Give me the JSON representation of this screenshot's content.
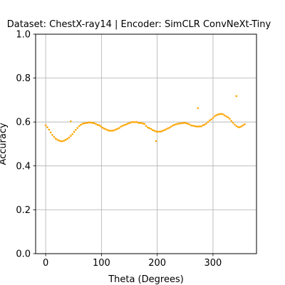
{
  "chart_data": {
    "type": "scatter",
    "title": "Dataset: ChestX-ray14 | Encoder: SimCLR ConvNeXt-Tiny",
    "xlabel": "Theta (Degrees)",
    "ylabel": "Accuracy",
    "xlim": [
      -18,
      378
    ],
    "ylim": [
      0.0,
      1.0
    ],
    "xticks": [
      0,
      100,
      200,
      300
    ],
    "yticks": [
      0.0,
      0.2,
      0.4,
      0.6,
      0.8,
      1.0
    ],
    "xtick_labels": [
      "0",
      "100",
      "200",
      "300"
    ],
    "ytick_labels": [
      "0.0",
      "0.2",
      "0.4",
      "0.6",
      "0.8",
      "1.0"
    ],
    "grid": true,
    "marker_color": "#ffa500",
    "series": [
      {
        "x": [
          0,
          3,
          6,
          9,
          12,
          15,
          18,
          21,
          24,
          27,
          30,
          33,
          36,
          39,
          42,
          45,
          48,
          51,
          54,
          57,
          60,
          63,
          66,
          69,
          72,
          75,
          78,
          81,
          84,
          87,
          90,
          93,
          96,
          99,
          102,
          105,
          108,
          111,
          114,
          117,
          120,
          123,
          126,
          129,
          132,
          135,
          138,
          141,
          144,
          147,
          150,
          153,
          156,
          159,
          162,
          165,
          168,
          171,
          174,
          177,
          180,
          183,
          186,
          189,
          192,
          195,
          198,
          201,
          204,
          207,
          210,
          213,
          216,
          219,
          222,
          225,
          228,
          231,
          234,
          237,
          240,
          243,
          246,
          249,
          252,
          255,
          258,
          261,
          264,
          267,
          270,
          273,
          276,
          279,
          282,
          285,
          288,
          291,
          294,
          297,
          300,
          303,
          306,
          309,
          312,
          315,
          318,
          321,
          324,
          327,
          330,
          333,
          336,
          339,
          342,
          345,
          348,
          351,
          354,
          357,
          45,
          198,
          273,
          342
        ],
        "y": [
          0.585,
          0.576,
          0.565,
          0.552,
          0.541,
          0.532,
          0.524,
          0.519,
          0.515,
          0.513,
          0.512,
          0.515,
          0.519,
          0.523,
          0.529,
          0.537,
          0.545,
          0.555,
          0.564,
          0.573,
          0.581,
          0.587,
          0.592,
          0.594,
          0.595,
          0.596,
          0.598,
          0.597,
          0.596,
          0.595,
          0.591,
          0.587,
          0.585,
          0.58,
          0.574,
          0.57,
          0.567,
          0.563,
          0.561,
          0.56,
          0.561,
          0.562,
          0.566,
          0.569,
          0.573,
          0.579,
          0.583,
          0.586,
          0.589,
          0.592,
          0.595,
          0.598,
          0.6,
          0.599,
          0.6,
          0.598,
          0.595,
          0.596,
          0.593,
          0.591,
          0.582,
          0.575,
          0.572,
          0.568,
          0.563,
          0.56,
          0.557,
          0.556,
          0.556,
          0.557,
          0.56,
          0.563,
          0.567,
          0.571,
          0.574,
          0.579,
          0.584,
          0.587,
          0.59,
          0.592,
          0.593,
          0.594,
          0.595,
          0.596,
          0.594,
          0.592,
          0.589,
          0.584,
          0.583,
          0.581,
          0.58,
          0.579,
          0.58,
          0.58,
          0.585,
          0.588,
          0.593,
          0.6,
          0.607,
          0.612,
          0.618,
          0.626,
          0.631,
          0.634,
          0.636,
          0.637,
          0.635,
          0.63,
          0.625,
          0.621,
          0.615,
          0.605,
          0.596,
          0.588,
          0.581,
          0.577,
          0.576,
          0.58,
          0.585,
          0.59,
          0.603,
          0.513,
          0.663,
          0.718
        ]
      }
    ]
  }
}
